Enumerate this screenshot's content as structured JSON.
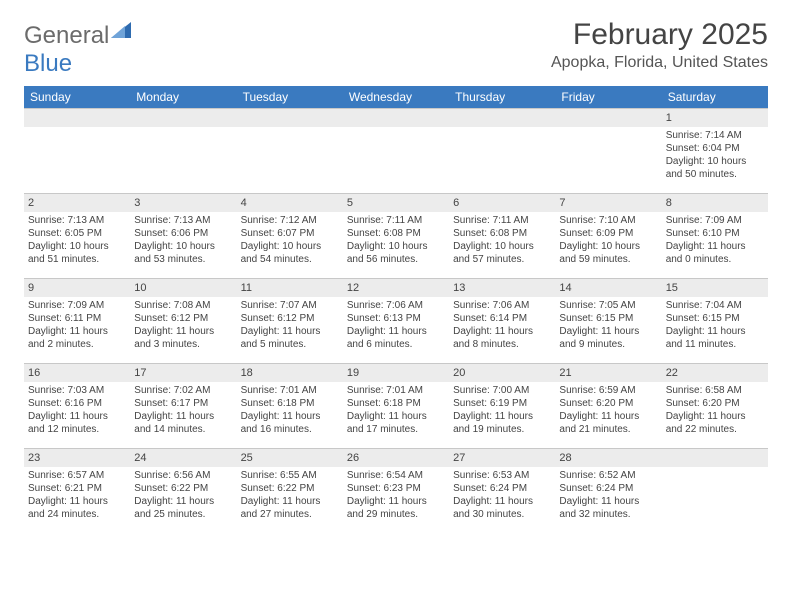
{
  "brand": {
    "part1": "General",
    "part2": "Blue"
  },
  "title": "February 2025",
  "location": "Apopka, Florida, United States",
  "weekdays": [
    "Sunday",
    "Monday",
    "Tuesday",
    "Wednesday",
    "Thursday",
    "Friday",
    "Saturday"
  ],
  "header_bg": "#3a7ac0",
  "header_fg": "#ffffff",
  "daynum_bg": "#ececec",
  "grid_line": "#c8c8c8",
  "weeks": [
    [
      null,
      null,
      null,
      null,
      null,
      null,
      {
        "n": "1",
        "sr": "Sunrise: 7:14 AM",
        "ss": "Sunset: 6:04 PM",
        "d1": "Daylight: 10 hours",
        "d2": "and 50 minutes."
      }
    ],
    [
      {
        "n": "2",
        "sr": "Sunrise: 7:13 AM",
        "ss": "Sunset: 6:05 PM",
        "d1": "Daylight: 10 hours",
        "d2": "and 51 minutes."
      },
      {
        "n": "3",
        "sr": "Sunrise: 7:13 AM",
        "ss": "Sunset: 6:06 PM",
        "d1": "Daylight: 10 hours",
        "d2": "and 53 minutes."
      },
      {
        "n": "4",
        "sr": "Sunrise: 7:12 AM",
        "ss": "Sunset: 6:07 PM",
        "d1": "Daylight: 10 hours",
        "d2": "and 54 minutes."
      },
      {
        "n": "5",
        "sr": "Sunrise: 7:11 AM",
        "ss": "Sunset: 6:08 PM",
        "d1": "Daylight: 10 hours",
        "d2": "and 56 minutes."
      },
      {
        "n": "6",
        "sr": "Sunrise: 7:11 AM",
        "ss": "Sunset: 6:08 PM",
        "d1": "Daylight: 10 hours",
        "d2": "and 57 minutes."
      },
      {
        "n": "7",
        "sr": "Sunrise: 7:10 AM",
        "ss": "Sunset: 6:09 PM",
        "d1": "Daylight: 10 hours",
        "d2": "and 59 minutes."
      },
      {
        "n": "8",
        "sr": "Sunrise: 7:09 AM",
        "ss": "Sunset: 6:10 PM",
        "d1": "Daylight: 11 hours",
        "d2": "and 0 minutes."
      }
    ],
    [
      {
        "n": "9",
        "sr": "Sunrise: 7:09 AM",
        "ss": "Sunset: 6:11 PM",
        "d1": "Daylight: 11 hours",
        "d2": "and 2 minutes."
      },
      {
        "n": "10",
        "sr": "Sunrise: 7:08 AM",
        "ss": "Sunset: 6:12 PM",
        "d1": "Daylight: 11 hours",
        "d2": "and 3 minutes."
      },
      {
        "n": "11",
        "sr": "Sunrise: 7:07 AM",
        "ss": "Sunset: 6:12 PM",
        "d1": "Daylight: 11 hours",
        "d2": "and 5 minutes."
      },
      {
        "n": "12",
        "sr": "Sunrise: 7:06 AM",
        "ss": "Sunset: 6:13 PM",
        "d1": "Daylight: 11 hours",
        "d2": "and 6 minutes."
      },
      {
        "n": "13",
        "sr": "Sunrise: 7:06 AM",
        "ss": "Sunset: 6:14 PM",
        "d1": "Daylight: 11 hours",
        "d2": "and 8 minutes."
      },
      {
        "n": "14",
        "sr": "Sunrise: 7:05 AM",
        "ss": "Sunset: 6:15 PM",
        "d1": "Daylight: 11 hours",
        "d2": "and 9 minutes."
      },
      {
        "n": "15",
        "sr": "Sunrise: 7:04 AM",
        "ss": "Sunset: 6:15 PM",
        "d1": "Daylight: 11 hours",
        "d2": "and 11 minutes."
      }
    ],
    [
      {
        "n": "16",
        "sr": "Sunrise: 7:03 AM",
        "ss": "Sunset: 6:16 PM",
        "d1": "Daylight: 11 hours",
        "d2": "and 12 minutes."
      },
      {
        "n": "17",
        "sr": "Sunrise: 7:02 AM",
        "ss": "Sunset: 6:17 PM",
        "d1": "Daylight: 11 hours",
        "d2": "and 14 minutes."
      },
      {
        "n": "18",
        "sr": "Sunrise: 7:01 AM",
        "ss": "Sunset: 6:18 PM",
        "d1": "Daylight: 11 hours",
        "d2": "and 16 minutes."
      },
      {
        "n": "19",
        "sr": "Sunrise: 7:01 AM",
        "ss": "Sunset: 6:18 PM",
        "d1": "Daylight: 11 hours",
        "d2": "and 17 minutes."
      },
      {
        "n": "20",
        "sr": "Sunrise: 7:00 AM",
        "ss": "Sunset: 6:19 PM",
        "d1": "Daylight: 11 hours",
        "d2": "and 19 minutes."
      },
      {
        "n": "21",
        "sr": "Sunrise: 6:59 AM",
        "ss": "Sunset: 6:20 PM",
        "d1": "Daylight: 11 hours",
        "d2": "and 21 minutes."
      },
      {
        "n": "22",
        "sr": "Sunrise: 6:58 AM",
        "ss": "Sunset: 6:20 PM",
        "d1": "Daylight: 11 hours",
        "d2": "and 22 minutes."
      }
    ],
    [
      {
        "n": "23",
        "sr": "Sunrise: 6:57 AM",
        "ss": "Sunset: 6:21 PM",
        "d1": "Daylight: 11 hours",
        "d2": "and 24 minutes."
      },
      {
        "n": "24",
        "sr": "Sunrise: 6:56 AM",
        "ss": "Sunset: 6:22 PM",
        "d1": "Daylight: 11 hours",
        "d2": "and 25 minutes."
      },
      {
        "n": "25",
        "sr": "Sunrise: 6:55 AM",
        "ss": "Sunset: 6:22 PM",
        "d1": "Daylight: 11 hours",
        "d2": "and 27 minutes."
      },
      {
        "n": "26",
        "sr": "Sunrise: 6:54 AM",
        "ss": "Sunset: 6:23 PM",
        "d1": "Daylight: 11 hours",
        "d2": "and 29 minutes."
      },
      {
        "n": "27",
        "sr": "Sunrise: 6:53 AM",
        "ss": "Sunset: 6:24 PM",
        "d1": "Daylight: 11 hours",
        "d2": "and 30 minutes."
      },
      {
        "n": "28",
        "sr": "Sunrise: 6:52 AM",
        "ss": "Sunset: 6:24 PM",
        "d1": "Daylight: 11 hours",
        "d2": "and 32 minutes."
      },
      null
    ]
  ]
}
